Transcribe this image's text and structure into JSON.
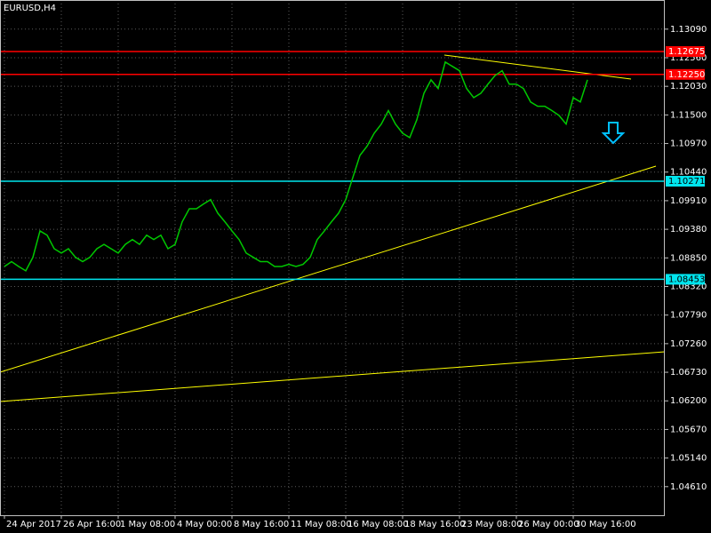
{
  "chart_data": {
    "type": "line",
    "title": "EURUSD,H4",
    "categories": [
      "24 Apr 2017",
      null,
      null,
      null,
      null,
      null,
      null,
      null,
      "26 Apr 16:00",
      null,
      null,
      null,
      null,
      null,
      null,
      null,
      "1 May 08:00",
      null,
      null,
      null,
      null,
      null,
      null,
      null,
      "4 May 00:00",
      null,
      null,
      null,
      null,
      null,
      null,
      null,
      "8 May 16:00",
      null,
      null,
      null,
      null,
      null,
      null,
      null,
      "11 May 08:00",
      null,
      null,
      null,
      null,
      null,
      null,
      null,
      "16 May 08:00",
      null,
      null,
      null,
      null,
      null,
      null,
      null,
      "18 May 16:00",
      null,
      null,
      null,
      null,
      null,
      null,
      null,
      "23 May 08:00",
      null,
      null,
      null,
      null,
      null,
      null,
      null,
      "26 May 00:00",
      null,
      null,
      null,
      null,
      null,
      null,
      null,
      "30 May 16:00",
      null,
      null
    ],
    "series": [
      {
        "name": "EURUSD",
        "color": "#00c800",
        "values": [
          1.0869,
          1.0878,
          1.0869,
          1.0861,
          1.0886,
          1.0935,
          1.0927,
          1.0902,
          1.0894,
          1.0902,
          1.0886,
          1.0878,
          1.0886,
          1.0902,
          1.091,
          1.0902,
          1.0894,
          1.091,
          1.0919,
          1.091,
          1.0927,
          1.0919,
          1.0927,
          1.0902,
          1.091,
          1.0952,
          1.0976,
          1.0976,
          1.0985,
          1.0993,
          1.0968,
          1.0952,
          1.0935,
          1.0919,
          1.0894,
          1.0886,
          1.0878,
          1.0878,
          1.0869,
          1.0869,
          1.0873,
          1.0869,
          1.0873,
          1.0886,
          1.0919,
          1.0935,
          1.0952,
          1.0968,
          1.0993,
          1.1034,
          1.1075,
          1.1092,
          1.1116,
          1.1133,
          1.1158,
          1.1133,
          1.1116,
          1.1108,
          1.1141,
          1.119,
          1.1215,
          1.1199,
          1.1248,
          1.124,
          1.1232,
          1.1199,
          1.1182,
          1.119,
          1.1207,
          1.1223,
          1.1232,
          1.1207,
          1.1207,
          1.1199,
          1.1174,
          1.1166,
          1.1166,
          1.1158,
          1.1149,
          1.1133,
          1.1182,
          1.1174,
          1.1215
        ]
      }
    ],
    "ylim": [
      1.0408,
      1.1363
    ],
    "yticks": [
      {
        "value": 1.1309,
        "label": "1.13090"
      },
      {
        "value": 1.1256,
        "label": "1.12560"
      },
      {
        "value": 1.1203,
        "label": "1.12030"
      },
      {
        "value": 1.115,
        "label": "1.11500"
      },
      {
        "value": 1.1097,
        "label": "1.10970"
      },
      {
        "value": 1.1044,
        "label": "1.10440"
      },
      {
        "value": 1.0991,
        "label": "1.09910"
      },
      {
        "value": 1.0938,
        "label": "1.09380"
      },
      {
        "value": 1.0885,
        "label": "1.08850"
      },
      {
        "value": 1.0832,
        "label": "1.08320"
      },
      {
        "value": 1.0779,
        "label": "1.07790"
      },
      {
        "value": 1.0726,
        "label": "1.07260"
      },
      {
        "value": 1.0673,
        "label": "1.06730"
      },
      {
        "value": 1.062,
        "label": "1.06200"
      },
      {
        "value": 1.0567,
        "label": "1.05670"
      },
      {
        "value": 1.0514,
        "label": "1.05140"
      },
      {
        "value": 1.0461,
        "label": "1.04610"
      }
    ],
    "grid": true,
    "levels": [
      {
        "value": 1.12675,
        "color": "#ff0000"
      },
      {
        "value": 1.1225,
        "label": "1.12250",
        "color": "#ff0000"
      },
      {
        "value": 1.10271,
        "color": "#00e5ee"
      },
      {
        "value": 1.08453,
        "color": "#00e5ee"
      }
    ]
  }
}
